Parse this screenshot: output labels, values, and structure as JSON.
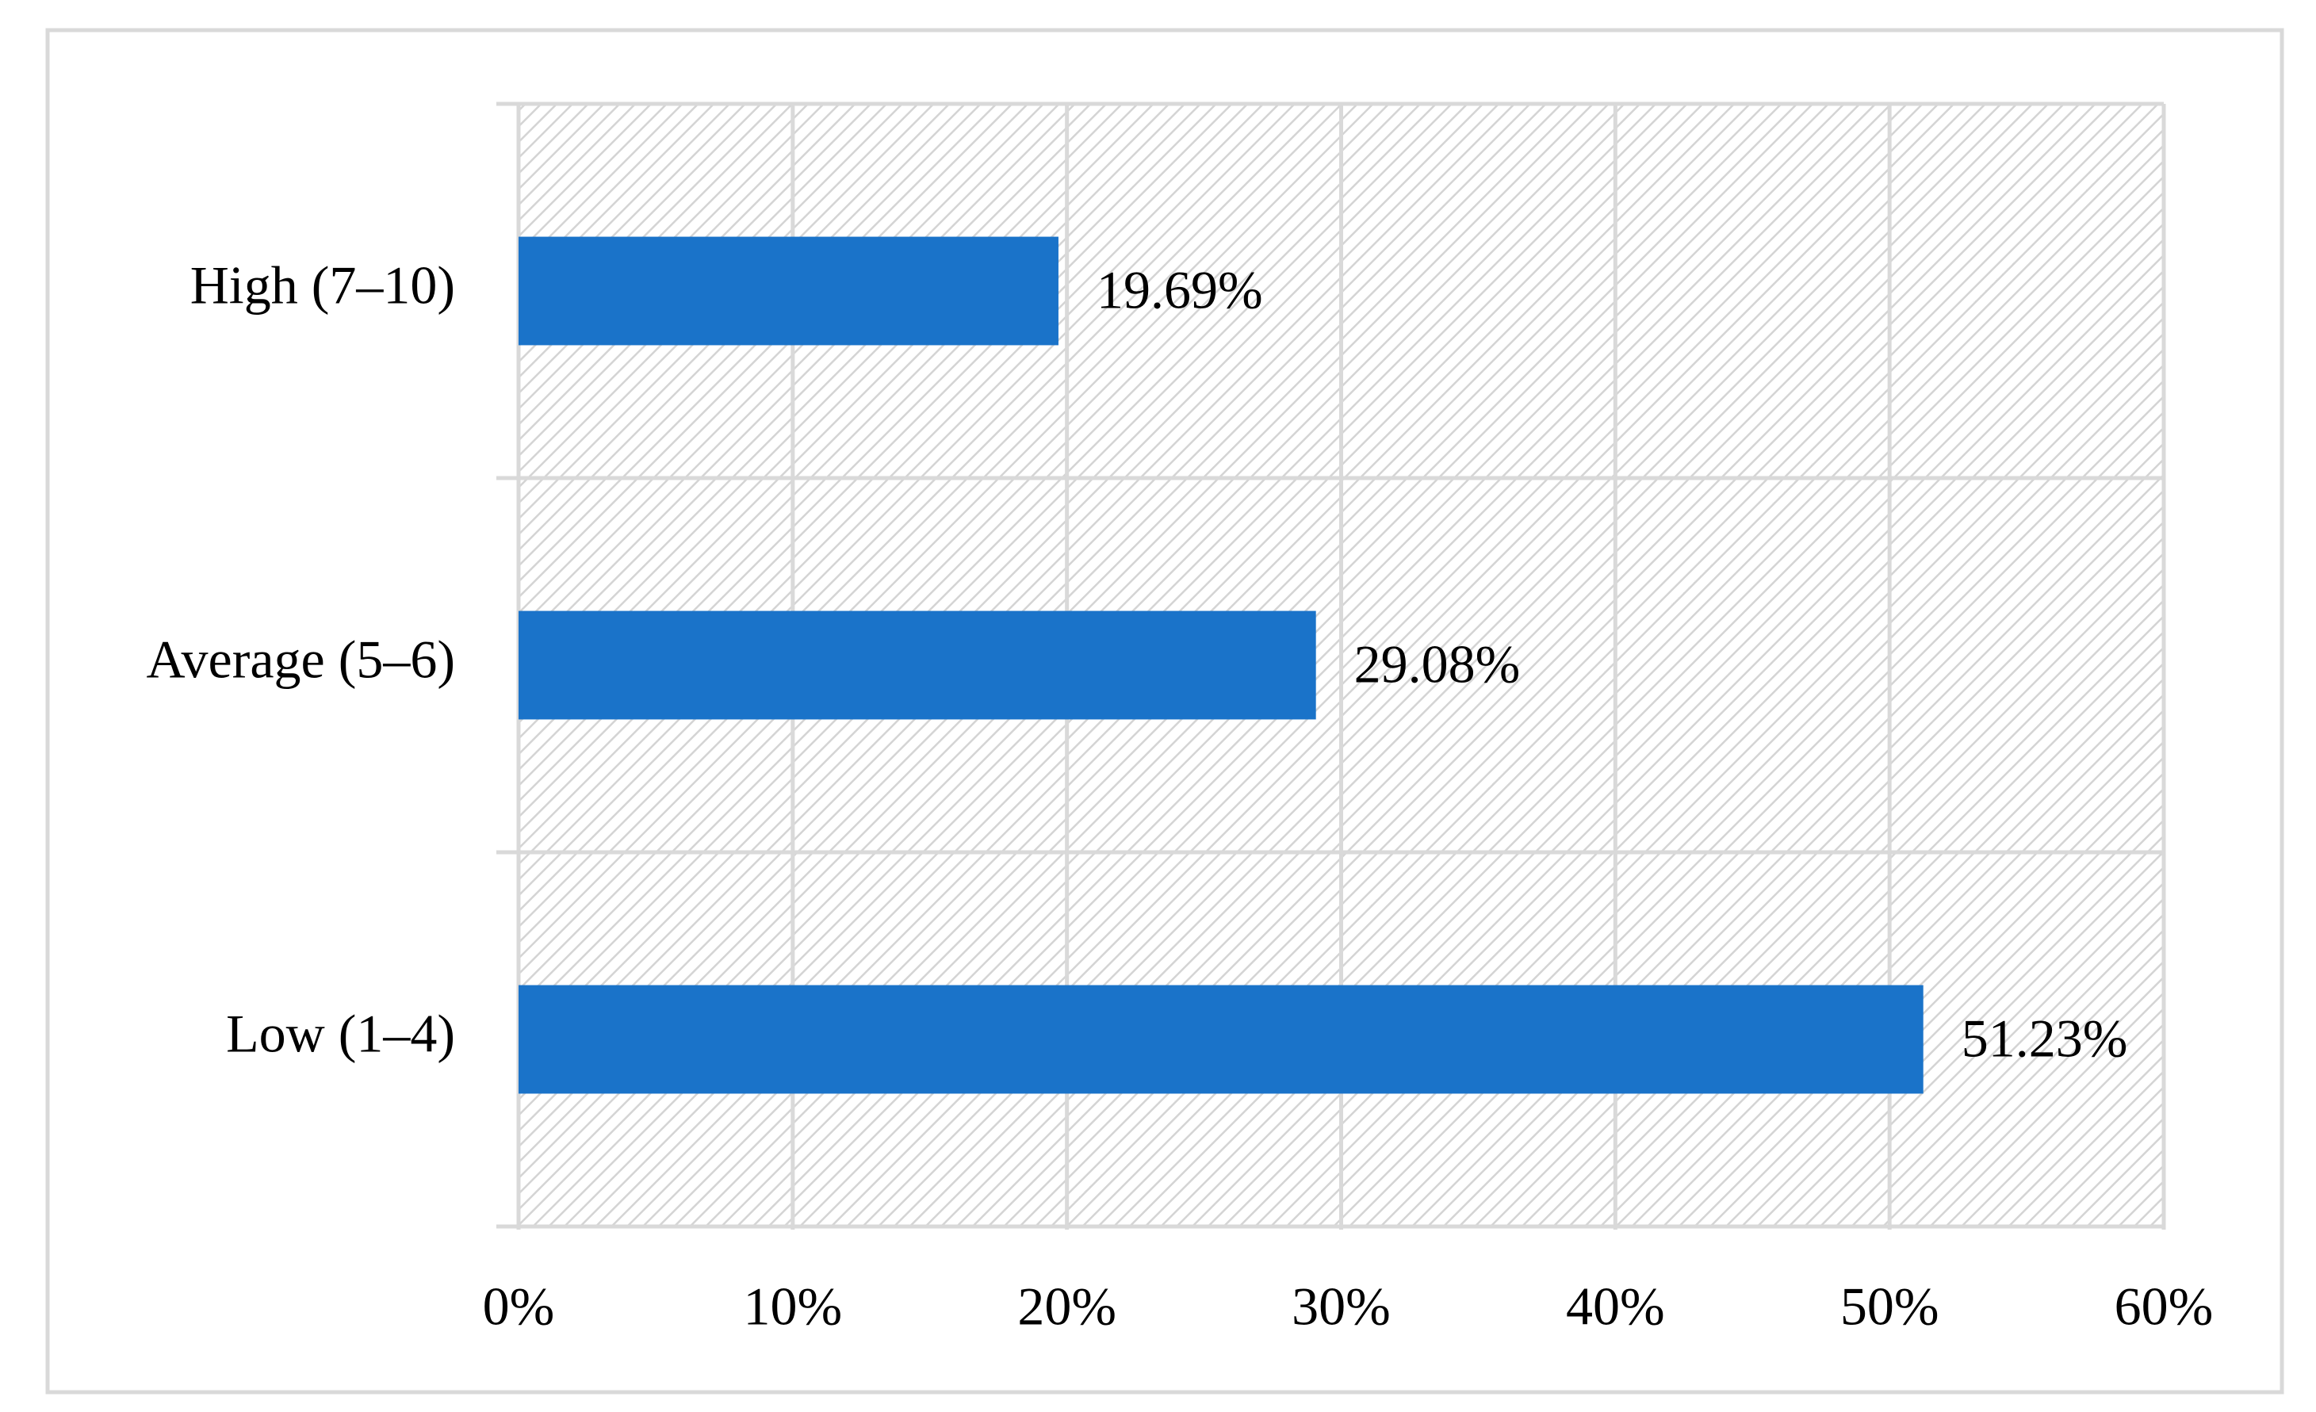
{
  "chart_data": {
    "type": "bar",
    "orientation": "horizontal",
    "categories": [
      "High (7–10)",
      "Average (5–6)",
      "Low (1–4)"
    ],
    "values": [
      19.69,
      29.08,
      51.23
    ],
    "value_labels": [
      "19.69%",
      "29.08%",
      "51.23%"
    ],
    "color": "#1a73c9",
    "xlim": [
      0,
      60
    ],
    "xticks": [
      {
        "value": 0,
        "label": "0%"
      },
      {
        "value": 10,
        "label": "10%"
      },
      {
        "value": 20,
        "label": "20%"
      },
      {
        "value": 30,
        "label": "30%"
      },
      {
        "value": 40,
        "label": "40%"
      },
      {
        "value": 50,
        "label": "50%"
      },
      {
        "value": 60,
        "label": "60%"
      }
    ],
    "grid": true
  }
}
